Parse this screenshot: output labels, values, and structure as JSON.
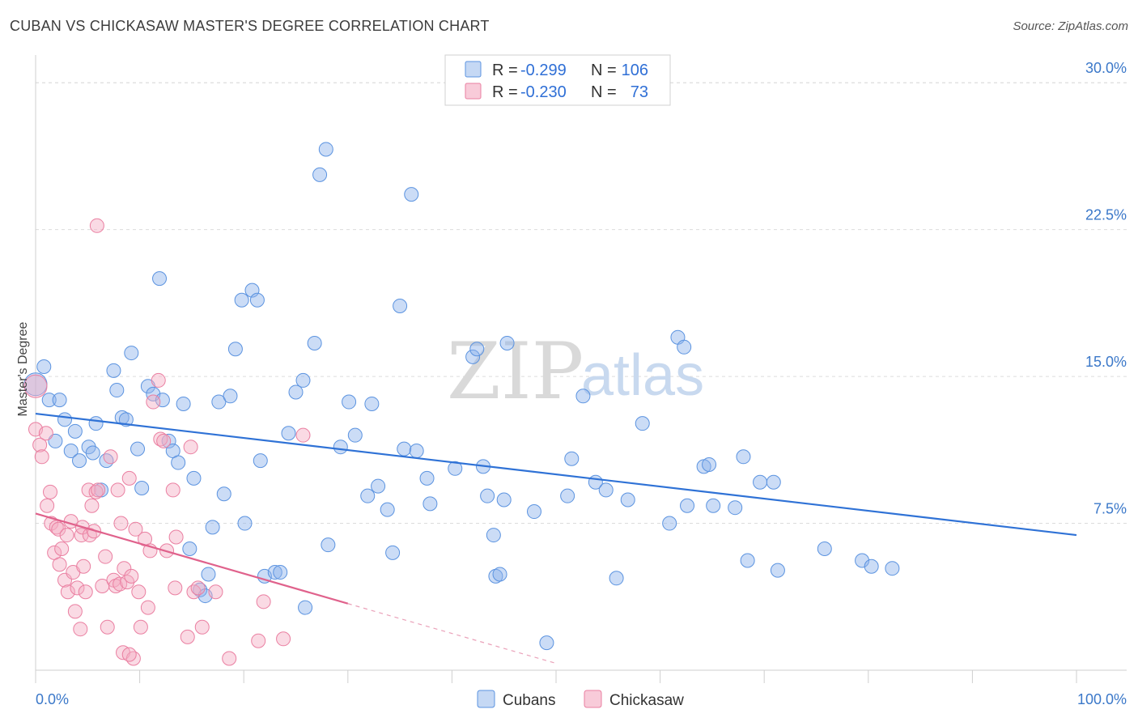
{
  "header": {
    "title": "CUBAN VS CHICKASAW MASTER'S DEGREE CORRELATION CHART",
    "source": "Source: ZipAtlas.com"
  },
  "watermark": {
    "zip": "ZIP",
    "atlas": "atlas"
  },
  "legend": {
    "r_label": "R =",
    "n_label": "N =",
    "rows": [
      {
        "series": "Cubans",
        "r": "-0.299",
        "n": "106",
        "color": "#5b93e0"
      },
      {
        "series": "Chickasaw",
        "r": "-0.230",
        "n": "73",
        "color": "#ea7fa1"
      }
    ]
  },
  "chart_data": {
    "type": "scatter",
    "title": "CUBAN VS CHICKASAW MASTER'S DEGREE CORRELATION CHART",
    "xlabel": "",
    "ylabel": "Master's Degree",
    "xlim": [
      0,
      100
    ],
    "ylim": [
      0,
      31
    ],
    "x_tick_labels": [
      "0.0%",
      "100.0%"
    ],
    "y_ticks": [
      7.5,
      15.0,
      22.5,
      30.0
    ],
    "y_tick_labels": [
      "7.5%",
      "15.0%",
      "22.5%",
      "30.0%"
    ],
    "legend_position": "bottom-center",
    "series": [
      {
        "name": "Cubans",
        "color": "#5b93e0",
        "trend": {
          "x0": 0,
          "y0": 13.1,
          "x1": 100,
          "y1": 6.9
        },
        "points": [
          [
            0,
            14.6
          ],
          [
            0.8,
            15.5
          ],
          [
            1.3,
            13.8
          ],
          [
            2.3,
            13.8
          ],
          [
            1.9,
            11.7
          ],
          [
            2.8,
            12.8
          ],
          [
            3.8,
            12.2
          ],
          [
            3.4,
            11.2
          ],
          [
            4.2,
            10.7
          ],
          [
            5.1,
            11.4
          ],
          [
            5.5,
            11.1
          ],
          [
            5.8,
            12.6
          ],
          [
            6.3,
            9.2
          ],
          [
            6.8,
            10.7
          ],
          [
            7.5,
            15.3
          ],
          [
            7.8,
            14.3
          ],
          [
            8.3,
            12.9
          ],
          [
            8.7,
            12.8
          ],
          [
            9.2,
            16.2
          ],
          [
            9.8,
            11.3
          ],
          [
            10.2,
            9.3
          ],
          [
            10.8,
            14.5
          ],
          [
            11.3,
            14.1
          ],
          [
            11.9,
            20.0
          ],
          [
            12.2,
            13.8
          ],
          [
            12.8,
            11.7
          ],
          [
            13.2,
            11.2
          ],
          [
            13.7,
            10.6
          ],
          [
            14.2,
            13.6
          ],
          [
            14.8,
            6.2
          ],
          [
            15.2,
            9.8
          ],
          [
            15.8,
            4.1
          ],
          [
            16.3,
            3.8
          ],
          [
            16.6,
            4.9
          ],
          [
            17.0,
            7.3
          ],
          [
            17.6,
            13.7
          ],
          [
            18.1,
            9.0
          ],
          [
            18.7,
            14.0
          ],
          [
            19.2,
            16.4
          ],
          [
            19.8,
            18.9
          ],
          [
            20.1,
            7.5
          ],
          [
            20.8,
            19.4
          ],
          [
            21.3,
            18.9
          ],
          [
            21.6,
            10.7
          ],
          [
            22.0,
            4.8
          ],
          [
            23.0,
            5.0
          ],
          [
            23.5,
            5.0
          ],
          [
            24.3,
            12.1
          ],
          [
            25.0,
            14.2
          ],
          [
            25.7,
            14.8
          ],
          [
            25.9,
            3.2
          ],
          [
            26.8,
            16.7
          ],
          [
            27.3,
            25.3
          ],
          [
            27.9,
            26.6
          ],
          [
            28.1,
            6.4
          ],
          [
            29.3,
            11.4
          ],
          [
            30.1,
            13.7
          ],
          [
            30.7,
            12.0
          ],
          [
            31.9,
            8.9
          ],
          [
            32.3,
            13.6
          ],
          [
            32.9,
            9.4
          ],
          [
            33.8,
            8.2
          ],
          [
            34.3,
            6.0
          ],
          [
            35.0,
            18.6
          ],
          [
            35.4,
            11.3
          ],
          [
            36.1,
            24.3
          ],
          [
            36.6,
            11.2
          ],
          [
            37.6,
            9.8
          ],
          [
            37.9,
            8.5
          ],
          [
            40.3,
            10.3
          ],
          [
            42.0,
            16.0
          ],
          [
            42.4,
            16.4
          ],
          [
            43.0,
            10.4
          ],
          [
            43.4,
            8.9
          ],
          [
            44.0,
            6.9
          ],
          [
            44.2,
            4.8
          ],
          [
            44.6,
            4.9
          ],
          [
            45.0,
            8.7
          ],
          [
            45.3,
            16.7
          ],
          [
            47.9,
            8.1
          ],
          [
            49.1,
            1.4
          ],
          [
            51.1,
            8.9
          ],
          [
            51.5,
            10.8
          ],
          [
            52.6,
            14.0
          ],
          [
            53.8,
            9.6
          ],
          [
            54.8,
            9.2
          ],
          [
            55.8,
            4.7
          ],
          [
            56.9,
            8.7
          ],
          [
            58.3,
            12.6
          ],
          [
            60.9,
            7.5
          ],
          [
            61.7,
            17.0
          ],
          [
            62.3,
            16.5
          ],
          [
            62.6,
            8.4
          ],
          [
            64.2,
            10.4
          ],
          [
            64.7,
            10.5
          ],
          [
            65.1,
            8.4
          ],
          [
            67.2,
            8.3
          ],
          [
            68.0,
            10.9
          ],
          [
            68.4,
            5.6
          ],
          [
            69.6,
            9.6
          ],
          [
            70.9,
            9.6
          ],
          [
            71.3,
            5.1
          ],
          [
            75.8,
            6.2
          ],
          [
            79.4,
            5.6
          ],
          [
            80.3,
            5.3
          ],
          [
            82.3,
            5.2
          ]
        ]
      },
      {
        "name": "Chickasaw",
        "color": "#ea7fa1",
        "trend": {
          "x0": 0,
          "y0": 8.0,
          "x1": 30,
          "y1": 3.4,
          "dashed_to_x": 50,
          "dashed_to_y": 0.35
        },
        "points": [
          [
            0,
            12.3
          ],
          [
            0.4,
            11.5
          ],
          [
            0.6,
            10.9
          ],
          [
            1.0,
            12.1
          ],
          [
            1.1,
            8.4
          ],
          [
            1.4,
            9.1
          ],
          [
            1.5,
            7.5
          ],
          [
            1.8,
            6.0
          ],
          [
            2.0,
            7.3
          ],
          [
            2.2,
            7.2
          ],
          [
            2.3,
            5.4
          ],
          [
            2.5,
            6.2
          ],
          [
            2.8,
            4.6
          ],
          [
            3.0,
            6.9
          ],
          [
            3.1,
            4.0
          ],
          [
            3.4,
            7.6
          ],
          [
            3.6,
            5.0
          ],
          [
            3.8,
            3.0
          ],
          [
            4.0,
            4.2
          ],
          [
            4.3,
            2.1
          ],
          [
            4.4,
            6.9
          ],
          [
            4.5,
            7.3
          ],
          [
            4.6,
            5.3
          ],
          [
            4.8,
            4.0
          ],
          [
            5.1,
            9.2
          ],
          [
            5.2,
            6.9
          ],
          [
            5.4,
            8.4
          ],
          [
            5.6,
            7.1
          ],
          [
            5.8,
            9.1
          ],
          [
            6.0,
            9.2
          ],
          [
            6.4,
            4.3
          ],
          [
            6.7,
            5.8
          ],
          [
            6.9,
            2.2
          ],
          [
            7.2,
            10.9
          ],
          [
            7.5,
            4.6
          ],
          [
            7.7,
            4.3
          ],
          [
            7.9,
            9.2
          ],
          [
            8.1,
            4.4
          ],
          [
            8.2,
            7.5
          ],
          [
            8.4,
            0.9
          ],
          [
            8.5,
            5.2
          ],
          [
            8.8,
            4.5
          ],
          [
            9.0,
            9.8
          ],
          [
            9.2,
            4.8
          ],
          [
            9.4,
            0.6
          ],
          [
            9.6,
            7.2
          ],
          [
            9.9,
            4.0
          ],
          [
            10.1,
            2.2
          ],
          [
            10.5,
            6.7
          ],
          [
            10.8,
            3.2
          ],
          [
            11.0,
            6.1
          ],
          [
            11.3,
            13.7
          ],
          [
            11.8,
            14.8
          ],
          [
            12.0,
            11.8
          ],
          [
            12.3,
            11.7
          ],
          [
            12.6,
            6.1
          ],
          [
            13.2,
            9.2
          ],
          [
            13.4,
            4.2
          ],
          [
            13.5,
            6.8
          ],
          [
            14.6,
            1.7
          ],
          [
            14.9,
            11.4
          ],
          [
            15.2,
            4.0
          ],
          [
            15.6,
            4.2
          ],
          [
            16.0,
            2.2
          ],
          [
            17.3,
            4.0
          ],
          [
            18.6,
            0.6
          ],
          [
            21.4,
            1.5
          ],
          [
            21.9,
            3.5
          ],
          [
            23.8,
            1.6
          ],
          [
            25.7,
            12.0
          ],
          [
            5.9,
            22.7
          ],
          [
            0.0,
            14.5
          ],
          [
            9.0,
            0.8
          ]
        ]
      }
    ]
  }
}
